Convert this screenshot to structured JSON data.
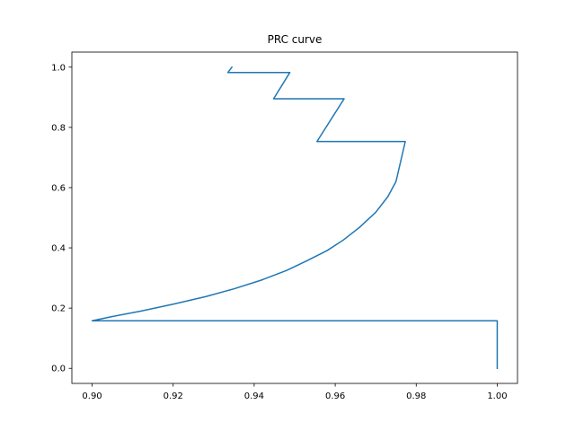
{
  "chart_data": {
    "type": "line",
    "title": "PRC curve",
    "xlabel": "",
    "ylabel": "",
    "xlim": [
      0.895,
      1.005
    ],
    "ylim": [
      -0.05,
      1.05
    ],
    "x_ticks": [
      0.9,
      0.92,
      0.94,
      0.96,
      0.98,
      1.0
    ],
    "x_tick_labels": [
      "0.90",
      "0.92",
      "0.94",
      "0.96",
      "0.98",
      "1.00"
    ],
    "y_ticks": [
      0.0,
      0.2,
      0.4,
      0.6,
      0.8,
      1.0
    ],
    "y_tick_labels": [
      "0.0",
      "0.2",
      "0.4",
      "0.6",
      "0.8",
      "1.0"
    ],
    "grid": false,
    "line_color": "#1f77b4",
    "series": [
      {
        "x": [
          1.0,
          1.0,
          0.9,
          0.905,
          0.912,
          0.92,
          0.928,
          0.935,
          0.942,
          0.948,
          0.953,
          0.958,
          0.962,
          0.966,
          0.97,
          0.973,
          0.975,
          0.9773,
          0.9555,
          0.9622,
          0.9448,
          0.9488,
          0.9335,
          0.9345
        ],
        "y": [
          0.0,
          0.158,
          0.158,
          0.172,
          0.19,
          0.213,
          0.238,
          0.264,
          0.294,
          0.325,
          0.357,
          0.391,
          0.426,
          0.468,
          0.518,
          0.57,
          0.62,
          0.753,
          0.753,
          0.895,
          0.895,
          0.982,
          0.982,
          1.0
        ]
      }
    ]
  }
}
